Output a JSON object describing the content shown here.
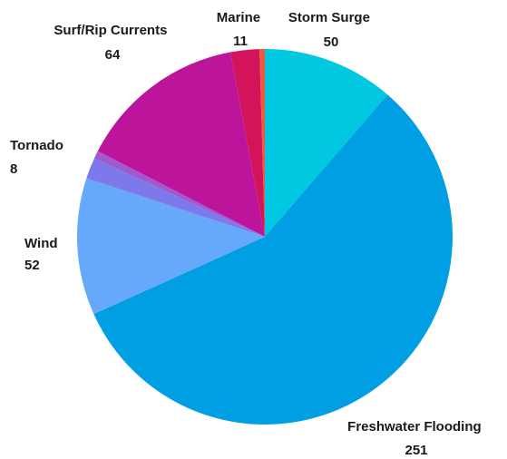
{
  "chart_data": {
    "type": "pie",
    "start_angle_deg": 0,
    "direction": "clockwise",
    "slices": [
      {
        "label": "Storm Surge",
        "value": 50,
        "color": "#00c8e0"
      },
      {
        "label": "Freshwater Flooding",
        "value": 251,
        "color": "#009fe3"
      },
      {
        "label": "Wind",
        "value": 52,
        "color": "#66a9fb"
      },
      {
        "label": "Tornado",
        "value": 8,
        "color": "#7d79ea"
      },
      {
        "label": "",
        "value": 3,
        "color": "#a05ad0"
      },
      {
        "label": "Surf/Rip Currents",
        "value": 64,
        "color": "#bd149c"
      },
      {
        "label": "Marine",
        "value": 11,
        "color": "#d4145a"
      },
      {
        "label": "",
        "value": 2,
        "color": "#f05a3c"
      }
    ]
  }
}
